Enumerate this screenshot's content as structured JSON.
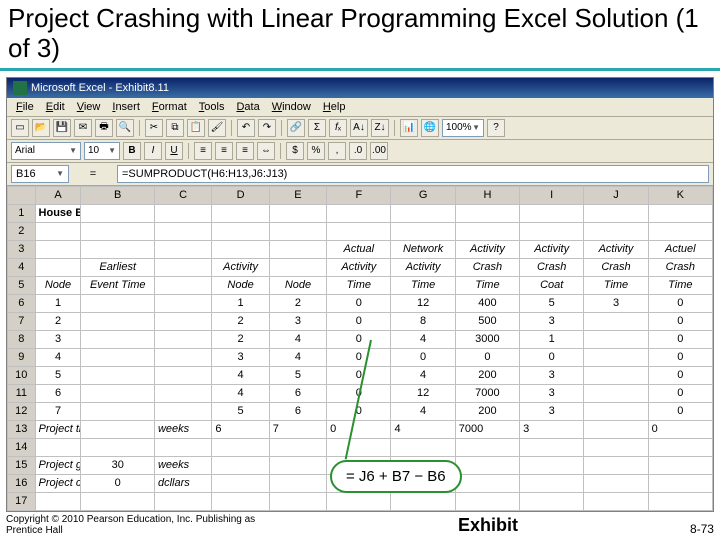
{
  "slide": {
    "title": "Project Crashing with Linear Programming Excel Solution (1 of 3)",
    "copyright": "Copyright © 2010 Pearson Education, Inc. Publishing as Prentice Hall",
    "exhibit_label": "Exhibit",
    "page": "8-73"
  },
  "excel": {
    "app_title": "Microsoft Excel - Exhibit8.11",
    "menus": [
      "File",
      "Edit",
      "View",
      "Insert",
      "Format",
      "Tools",
      "Data",
      "Window",
      "Help"
    ],
    "font_name": "Arial",
    "font_size": "10",
    "zoom": "100%",
    "name_box": "B16",
    "formula": "=SUMPRODUCT(H6:H13,J6:J13)",
    "callout_formula": "= J6 + B7 − B6"
  },
  "columns": [
    "",
    "A",
    "B",
    "C",
    "D",
    "E",
    "F",
    "G",
    "H",
    "I",
    "J",
    "K"
  ],
  "rows": [
    {
      "n": "1",
      "cells": [
        "House Building Project",
        "",
        "",
        "",
        "",
        "",
        "",
        "",
        "",
        "",
        ""
      ],
      "bold": true
    },
    {
      "n": "2",
      "cells": [
        "",
        "",
        "",
        "",
        "",
        "",
        "",
        "",
        "",
        "",
        ""
      ]
    },
    {
      "n": "3",
      "cells": [
        "",
        "",
        "",
        "",
        "",
        "Actual",
        "Network",
        "Activity",
        "Activity",
        "Activity",
        "Actuel"
      ],
      "italic": true,
      "ctr": true
    },
    {
      "n": "4",
      "cells": [
        "",
        "Earliest",
        "",
        "Activity",
        "",
        "Activity",
        "Activity",
        "Crash",
        "Crash",
        "Crash",
        "Crash"
      ],
      "italic": true,
      "ctr": true
    },
    {
      "n": "5",
      "cells": [
        "Node",
        "Event Time",
        "",
        "Node",
        "Node",
        "Time",
        "Time",
        "Time",
        "Coat",
        "Time",
        "Time"
      ],
      "italic": true,
      "ctr": true
    },
    {
      "n": "6",
      "cells": [
        "1",
        "",
        "",
        "1",
        "2",
        "0",
        "12",
        "400",
        "5",
        "3",
        "0"
      ],
      "ctr": true
    },
    {
      "n": "7",
      "cells": [
        "2",
        "",
        "",
        "2",
        "3",
        "0",
        "8",
        "500",
        "3",
        "",
        "0"
      ],
      "ctr": true
    },
    {
      "n": "8",
      "cells": [
        "3",
        "",
        "",
        "2",
        "4",
        "0",
        "4",
        "3000",
        "1",
        "",
        "0"
      ],
      "ctr": true
    },
    {
      "n": "9",
      "cells": [
        "4",
        "",
        "",
        "3",
        "4",
        "0",
        "0",
        "0",
        "0",
        "",
        "0"
      ],
      "ctr": true
    },
    {
      "n": "10",
      "cells": [
        "5",
        "",
        "",
        "4",
        "5",
        "0",
        "4",
        "200",
        "3",
        "",
        "0"
      ],
      "ctr": true
    },
    {
      "n": "11",
      "cells": [
        "6",
        "",
        "",
        "4",
        "6",
        "0",
        "12",
        "7000",
        "3",
        "",
        "0"
      ],
      "ctr": true
    },
    {
      "n": "12",
      "cells": [
        "7",
        "",
        "",
        "5",
        "6",
        "0",
        "4",
        "200",
        "3",
        "",
        "0"
      ],
      "ctr": true
    },
    {
      "n": "13",
      "cells": [
        "Project time =",
        "",
        "weeks",
        "6",
        "7",
        "0",
        "4",
        "7000",
        "3",
        "",
        "0"
      ],
      "italicA": true
    },
    {
      "n": "14",
      "cells": [
        "",
        "",
        "",
        "",
        "",
        "",
        "",
        "",
        "",
        "",
        ""
      ]
    },
    {
      "n": "15",
      "cells": [
        "Project goal =",
        "30",
        "weeks",
        "",
        "",
        "",
        "",
        "",
        "",
        "",
        ""
      ],
      "italicA": true
    },
    {
      "n": "16",
      "cells": [
        "Project cost =",
        "0",
        "dcllars",
        "",
        "",
        "",
        "",
        "",
        "",
        "",
        ""
      ],
      "italicA": true
    },
    {
      "n": "17",
      "cells": [
        "",
        "",
        "",
        "",
        "",
        "",
        "",
        "",
        "",
        "",
        ""
      ]
    }
  ]
}
